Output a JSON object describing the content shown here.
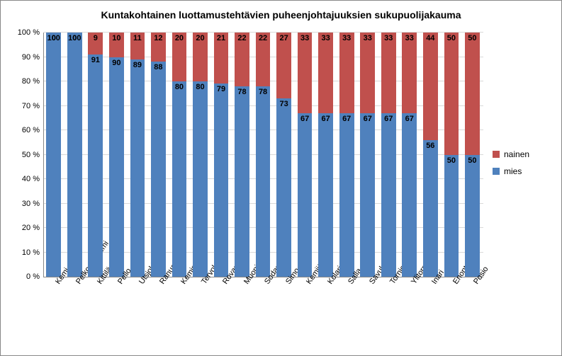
{
  "chart": {
    "type": "stacked-bar-percent",
    "title": "Kuntakohtainen luottamustehtävien puheenjohtajuuksien sukupuolijakauma",
    "title_fontsize": 14,
    "title_fontweight": "bold",
    "background_color": "#ffffff",
    "border_color": "#888888",
    "grid_color": "#d9d9d9",
    "axis_color": "#888888",
    "ylim": [
      0,
      100
    ],
    "ytick_step": 10,
    "ytick_suffix": " %",
    "y_labels": [
      "0 %",
      "10 %",
      "20 %",
      "30 %",
      "40 %",
      "50 %",
      "60 %",
      "70 %",
      "80 %",
      "90 %",
      "100 %"
    ],
    "categories": [
      "Kemi",
      "Pelkosenniemi",
      "Kittilä",
      "Pello",
      "Utsjoki",
      "Ranua",
      "Keminmaa",
      "Tervola",
      "Rovaniemi",
      "Muonio",
      "Sodankylä",
      "Simo",
      "Kemijärvi",
      "Kolari",
      "Salla",
      "Savukoski",
      "Tornio",
      "Ylitornio",
      "Inari",
      "Enontekiö",
      "Posio"
    ],
    "series": [
      {
        "key": "mies",
        "label": "mies",
        "color": "#4f81bd"
      },
      {
        "key": "nainen",
        "label": "nainen",
        "color": "#c0504d"
      }
    ],
    "data": {
      "mies": [
        100,
        100,
        91,
        90,
        89,
        88,
        80,
        80,
        79,
        78,
        78,
        73,
        67,
        67,
        67,
        67,
        67,
        67,
        56,
        50,
        50
      ],
      "nainen": [
        0,
        0,
        9,
        10,
        11,
        12,
        20,
        20,
        21,
        22,
        22,
        27,
        33,
        33,
        33,
        33,
        33,
        33,
        44,
        50,
        50
      ]
    },
    "bar_width": 0.7,
    "label_fontsize": 11,
    "xlabel_rotation_deg": -55
  }
}
